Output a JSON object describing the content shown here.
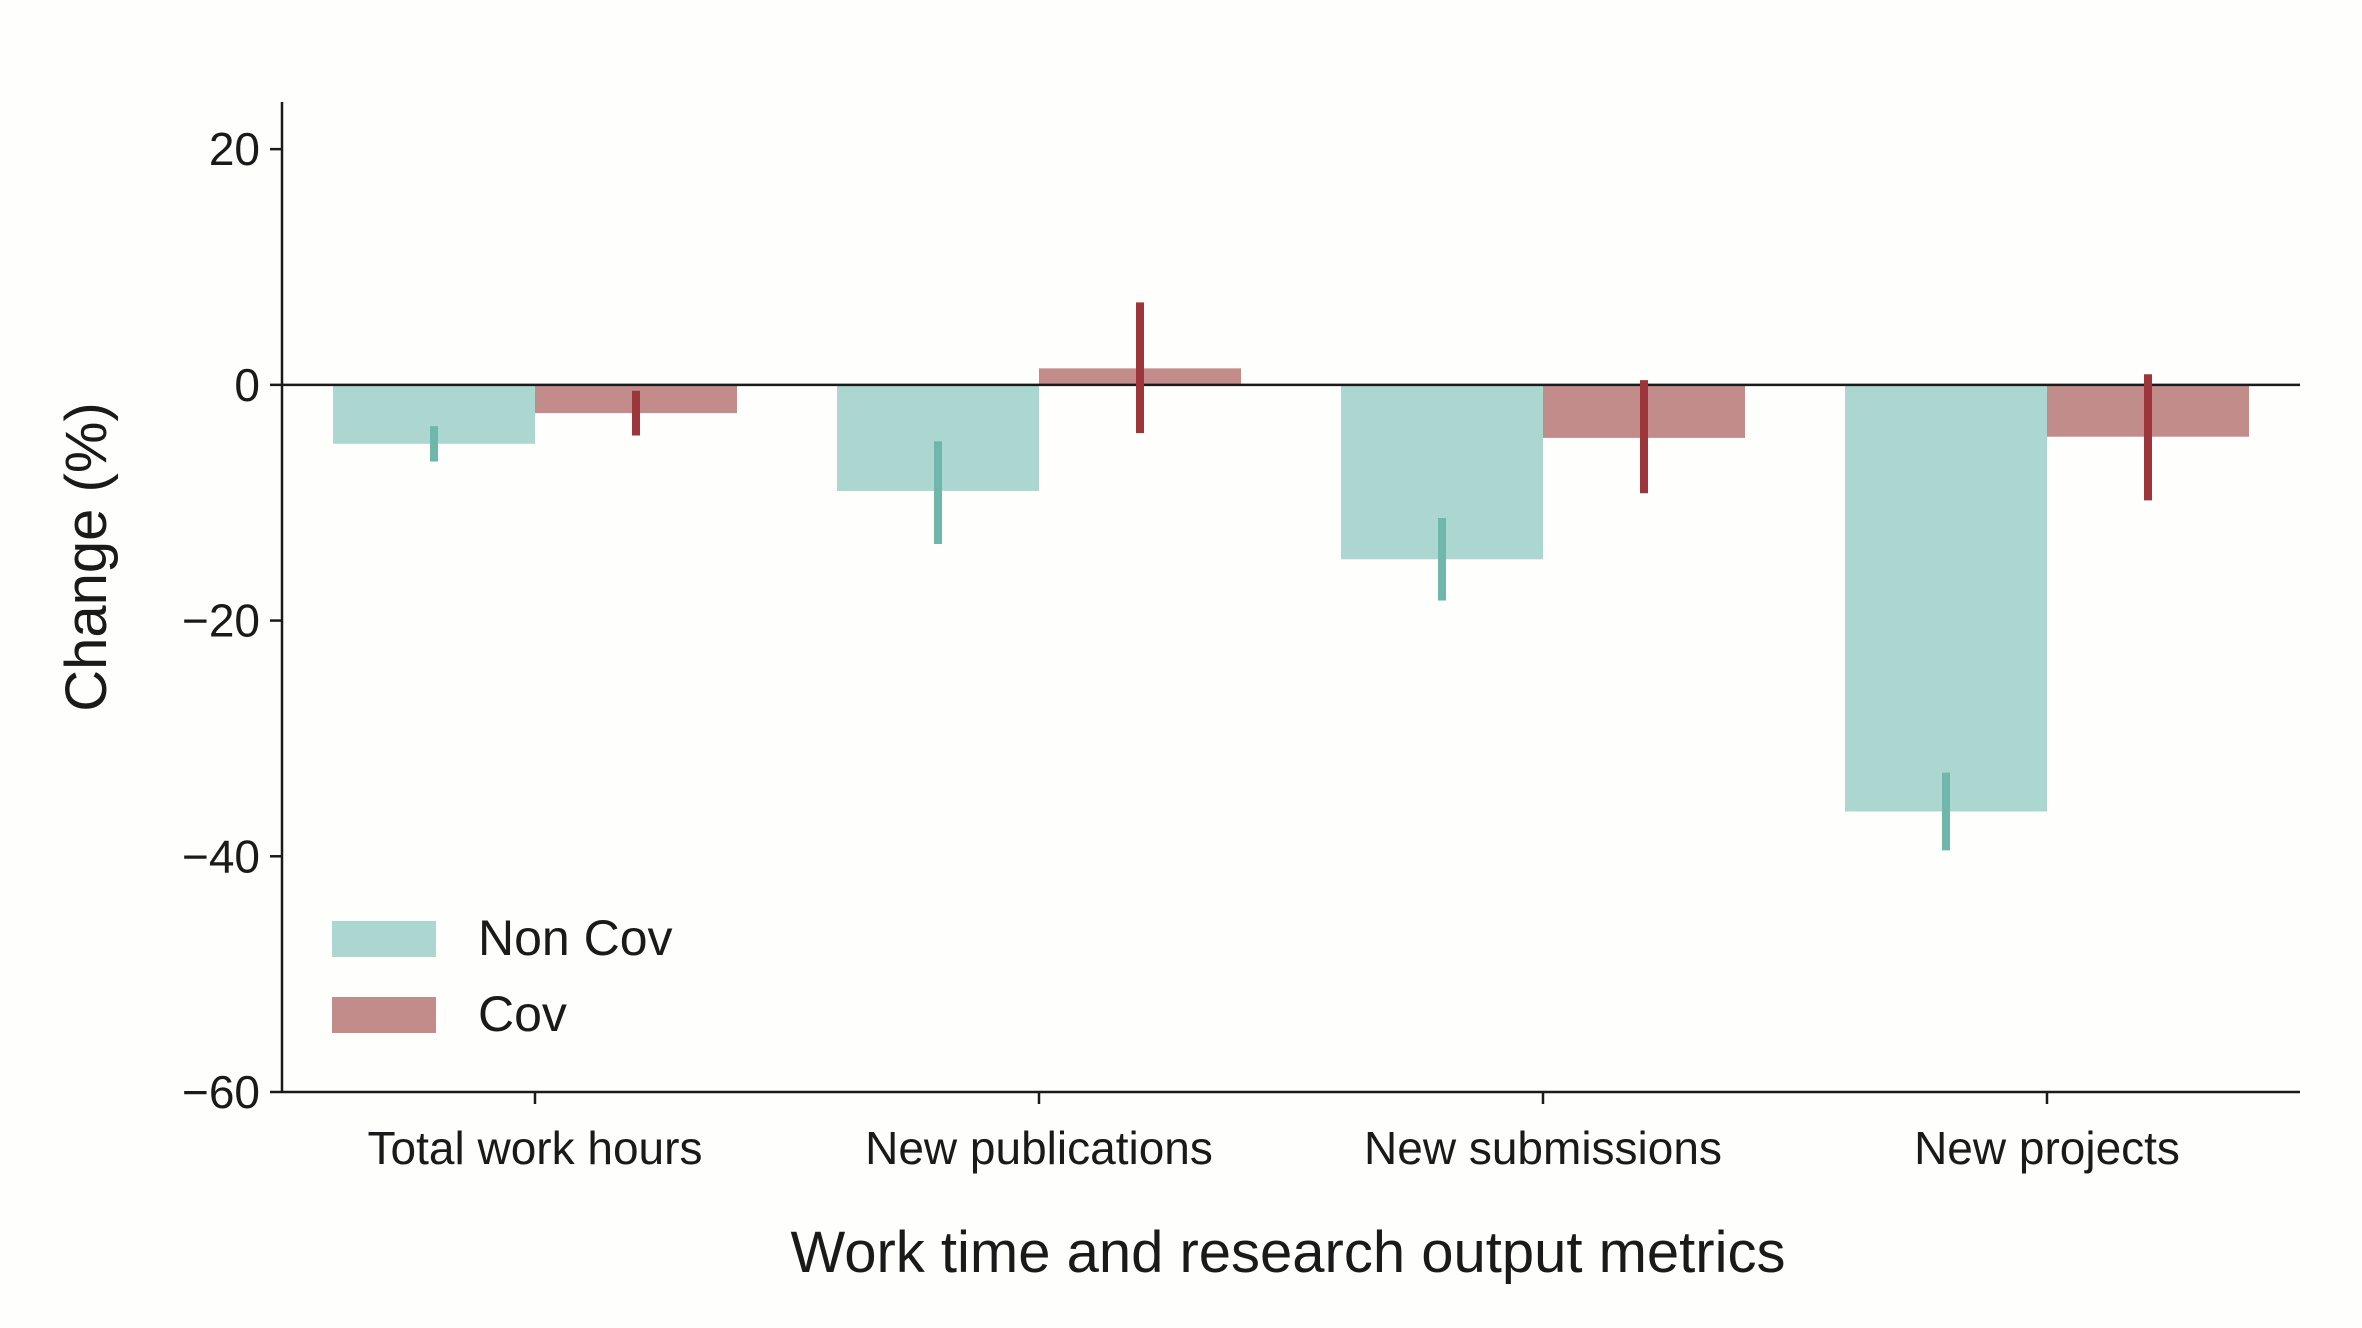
{
  "chart_data": {
    "type": "bar",
    "title": "",
    "xlabel": "Work time and research output metrics",
    "ylabel": "Change (%)",
    "ylim": [
      -60,
      24
    ],
    "yticks": [
      20,
      0,
      -20,
      -40,
      -60
    ],
    "ytick_labels": [
      "20",
      "0",
      "−20",
      "−40",
      "−60"
    ],
    "categories": [
      "Total work hours",
      "New publications",
      "New submissions",
      "New projects"
    ],
    "series": [
      {
        "name": "Non Cov",
        "values": [
          -5.0,
          -9.0,
          -14.8,
          -36.2
        ],
        "error_low": [
          -6.5,
          -13.5,
          -18.3,
          -39.5
        ],
        "error_high": [
          -3.5,
          -4.8,
          -11.3,
          -32.9
        ],
        "color": "#acd6d0",
        "error_color": "#6fb7aa"
      },
      {
        "name": "Cov",
        "values": [
          -2.4,
          1.4,
          -4.5,
          -4.4
        ],
        "error_low": [
          -4.3,
          -4.1,
          -9.2,
          -9.8
        ],
        "error_high": [
          -0.5,
          7.0,
          0.4,
          0.9
        ],
        "color": "#c18c8a",
        "error_color": "#9d363a"
      }
    ],
    "legend_position": "lower-left",
    "grid": false
  }
}
